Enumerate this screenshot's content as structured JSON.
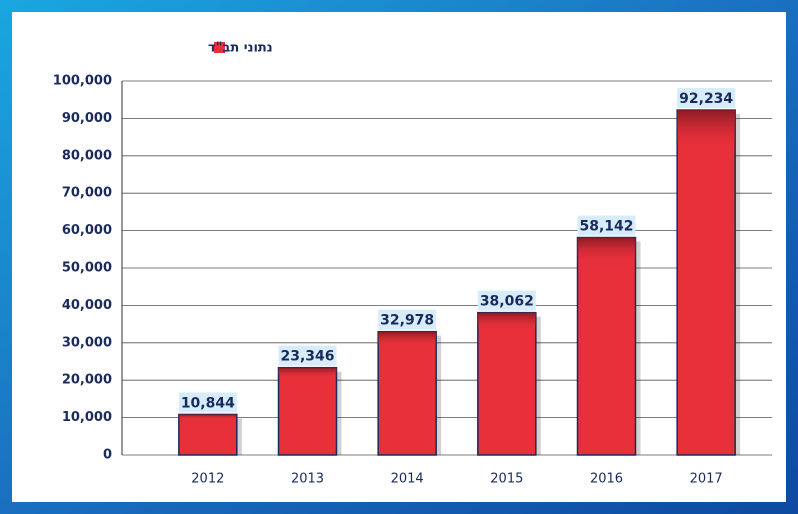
{
  "chart_data": {
    "type": "bar",
    "legend": "נתוני תב\"ד",
    "categories": [
      "2012",
      "2013",
      "2014",
      "2015",
      "2016",
      "2017"
    ],
    "values": [
      10844,
      23346,
      32978,
      38062,
      58142,
      92234
    ],
    "value_labels": [
      "10,844",
      "23,346",
      "32,978",
      "38,062",
      "58,142",
      "92,234"
    ],
    "color": "#e8303a",
    "ylim": [
      0,
      100000
    ],
    "yticks": [
      0,
      {
        "value": 10000,
        "label": "10,000"
      },
      {
        "value": 20000,
        "label": "20,000"
      },
      {
        "value": 30000,
        "label": "30,000"
      },
      {
        "value": 40000,
        "label": "40,000"
      },
      {
        "value": 50000,
        "label": "50,000"
      },
      {
        "value": 60000,
        "label": "60,000"
      },
      {
        "value": 70000,
        "label": "70,000"
      },
      {
        "value": 80000,
        "label": "80,000"
      },
      {
        "value": 90000,
        "label": "90,000"
      },
      {
        "value": 100000,
        "label": "100,000"
      }
    ],
    "grid": true
  }
}
